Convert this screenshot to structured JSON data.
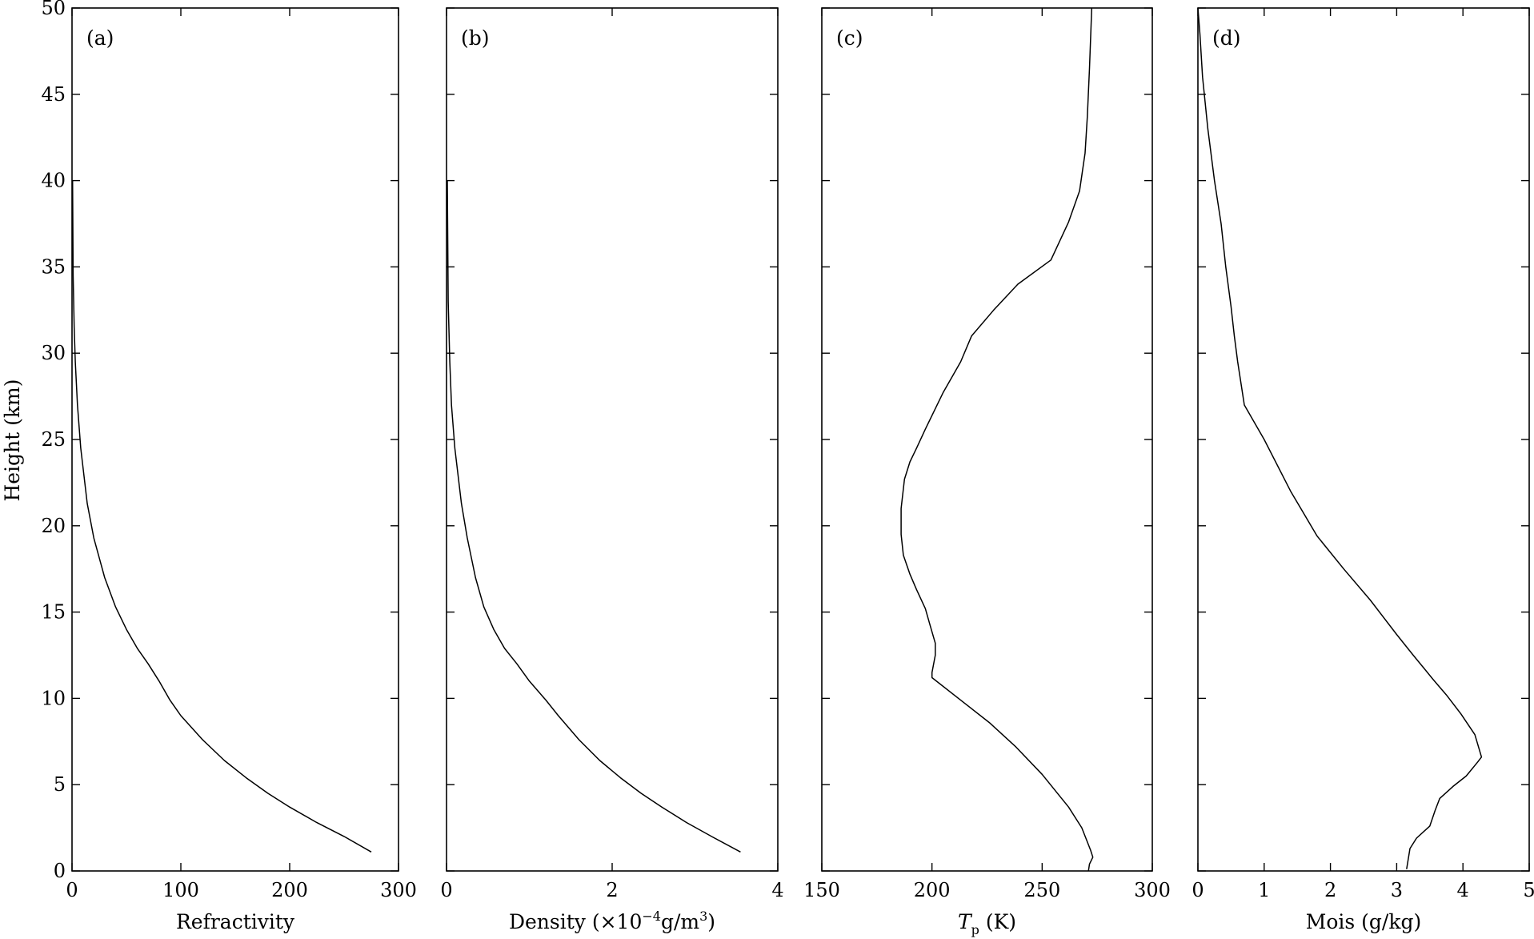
{
  "chart_data": [
    {
      "type": "line",
      "panel_label": "(a)",
      "xlabel": "Refractivity",
      "ylabel": "Height (km)",
      "xlim": [
        0,
        300
      ],
      "ylim": [
        0,
        50
      ],
      "xticks": [
        0,
        100,
        200,
        300
      ],
      "yticks": [
        0,
        5,
        10,
        15,
        20,
        25,
        30,
        35,
        40,
        45,
        50
      ],
      "grid": false,
      "series": [
        {
          "x": [
            275,
            250,
            225,
            200,
            180,
            160,
            140,
            120,
            100,
            90,
            80,
            70,
            60,
            50,
            40,
            30,
            20,
            14,
            8,
            5,
            3,
            2,
            1,
            0.5
          ],
          "y": [
            1.1,
            2.0,
            2.8,
            3.7,
            4.5,
            5.4,
            6.4,
            7.6,
            9.0,
            9.9,
            11.0,
            12.0,
            12.9,
            14.0,
            15.3,
            17.0,
            19.3,
            21.3,
            24.5,
            27.0,
            29.5,
            31.5,
            34.5,
            40.0
          ]
        }
      ]
    },
    {
      "type": "line",
      "panel_label": "(b)",
      "xlabel_prefix": "Density (×10",
      "xlabel_exp": "−4",
      "xlabel_mid": "g/m",
      "xlabel_exp2": "3",
      "xlabel_suffix": ")",
      "xlim": [
        0,
        4
      ],
      "ylim": [
        0,
        50
      ],
      "xticks": [
        0,
        2,
        4
      ],
      "yticks": [
        0,
        5,
        10,
        15,
        20,
        25,
        30,
        35,
        40,
        45,
        50
      ],
      "grid": false,
      "series": [
        {
          "x": [
            3.55,
            3.2,
            2.9,
            2.6,
            2.35,
            2.1,
            1.85,
            1.6,
            1.35,
            1.2,
            1.0,
            0.85,
            0.7,
            0.57,
            0.45,
            0.35,
            0.25,
            0.18,
            0.1,
            0.06,
            0.04,
            0.02,
            0.01
          ],
          "y": [
            1.1,
            2.0,
            2.8,
            3.7,
            4.5,
            5.4,
            6.4,
            7.6,
            9.0,
            9.9,
            11.0,
            12.0,
            12.9,
            14.0,
            15.3,
            17.0,
            19.3,
            21.3,
            24.5,
            27.0,
            29.5,
            33.0,
            40.0
          ]
        }
      ]
    },
    {
      "type": "line",
      "panel_label": "(c)",
      "xlabel_main": "T",
      "xlabel_sub": "p",
      "xlabel_suffix": " (K)",
      "xlim": [
        150,
        300
      ],
      "ylim": [
        0,
        50
      ],
      "xticks": [
        150,
        200,
        250,
        300
      ],
      "yticks": [
        0,
        5,
        10,
        15,
        20,
        25,
        30,
        35,
        40,
        45,
        50
      ],
      "grid": false,
      "series": [
        {
          "x": [
            271,
            271.5,
            273,
            272,
            268,
            262,
            250,
            238,
            226,
            214,
            200,
            200,
            201.5,
            201.5,
            199,
            197,
            193,
            190,
            187,
            186,
            186,
            187.5,
            190,
            193,
            197,
            205,
            213,
            218,
            228,
            239,
            254,
            262,
            267,
            269.5,
            270.5,
            271.5,
            272.5
          ],
          "y": [
            0,
            0.4,
            0.8,
            1.2,
            2.5,
            3.7,
            5.6,
            7.2,
            8.6,
            9.8,
            11.2,
            11.5,
            12.5,
            13.2,
            14.3,
            15.2,
            16.3,
            17.2,
            18.3,
            19.5,
            21.0,
            22.7,
            23.7,
            24.5,
            25.6,
            27.7,
            29.5,
            31.0,
            32.5,
            34.0,
            35.4,
            37.6,
            39.4,
            41.6,
            43.7,
            46.5,
            50.0
          ]
        }
      ]
    },
    {
      "type": "line",
      "panel_label": "(d)",
      "xlabel": "Mois (g/kg)",
      "xlim": [
        0,
        5
      ],
      "ylim": [
        0,
        50
      ],
      "xticks": [
        0,
        1,
        2,
        3,
        4,
        5
      ],
      "yticks": [
        0,
        5,
        10,
        15,
        20,
        25,
        30,
        35,
        40,
        45,
        50
      ],
      "grid": false,
      "series": [
        {
          "x": [
            3.15,
            3.2,
            3.3,
            3.5,
            3.58,
            3.65,
            3.85,
            4.05,
            4.22,
            4.28,
            4.18,
            3.97,
            3.75,
            3.55,
            3.25,
            3.0,
            2.6,
            2.2,
            1.8,
            1.4,
            1.0,
            0.7,
            0.6,
            0.55,
            0.5,
            0.42,
            0.35,
            0.25,
            0.15,
            0.07,
            0.03,
            0.0
          ],
          "y": [
            0.1,
            1.3,
            1.9,
            2.6,
            3.5,
            4.2,
            4.9,
            5.5,
            6.3,
            6.6,
            7.9,
            9.1,
            10.2,
            11.1,
            12.5,
            13.7,
            15.7,
            17.5,
            19.4,
            22.0,
            25.0,
            27.0,
            29.5,
            31.0,
            32.7,
            35.0,
            37.5,
            40.0,
            43.0,
            46.0,
            48.5,
            50.0
          ]
        }
      ]
    }
  ]
}
